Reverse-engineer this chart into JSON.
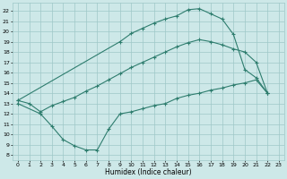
{
  "xlabel": "Humidex (Indice chaleur)",
  "bg_color": "#cde8e8",
  "grid_color": "#9ec8c8",
  "line_color": "#2e7d6e",
  "xlim": [
    -0.5,
    23.5
  ],
  "ylim": [
    7.5,
    22.8
  ],
  "xticks": [
    0,
    1,
    2,
    3,
    4,
    5,
    6,
    7,
    8,
    9,
    10,
    11,
    12,
    13,
    14,
    15,
    16,
    17,
    18,
    19,
    20,
    21,
    22,
    23
  ],
  "yticks": [
    8,
    9,
    10,
    11,
    12,
    13,
    14,
    15,
    16,
    17,
    18,
    19,
    20,
    21,
    22
  ],
  "line1_x": [
    0,
    1,
    2,
    3,
    4,
    5,
    6,
    7,
    8,
    9,
    10,
    11,
    12,
    13,
    14,
    15,
    16,
    17,
    18,
    19,
    20,
    21,
    22
  ],
  "line1_y": [
    13.3,
    13.0,
    12.2,
    12.8,
    13.2,
    13.6,
    14.2,
    14.7,
    15.3,
    15.9,
    16.5,
    17.0,
    17.5,
    18.0,
    18.5,
    18.9,
    19.2,
    19.0,
    18.7,
    18.3,
    18.0,
    17.0,
    14.0
  ],
  "line2_x": [
    0,
    9,
    10,
    11,
    12,
    13,
    14,
    15,
    16,
    17,
    18,
    19,
    20,
    21,
    22
  ],
  "line2_y": [
    13.3,
    19.0,
    19.8,
    20.3,
    20.8,
    21.2,
    21.5,
    22.1,
    22.2,
    21.7,
    21.2,
    19.7,
    16.3,
    15.5,
    14.0
  ],
  "line3_x": [
    0,
    2,
    3,
    4,
    5,
    6,
    7,
    8,
    9,
    10,
    11,
    12,
    13,
    14,
    15,
    16,
    17,
    18,
    19,
    20,
    21,
    22
  ],
  "line3_y": [
    13.0,
    12.0,
    10.8,
    9.5,
    8.9,
    8.5,
    8.5,
    10.5,
    12.0,
    12.2,
    12.5,
    12.8,
    13.0,
    13.5,
    13.8,
    14.0,
    14.3,
    14.5,
    14.8,
    15.0,
    15.3,
    14.0
  ],
  "xlabel_fontsize": 5.5,
  "tick_fontsize": 4.5
}
